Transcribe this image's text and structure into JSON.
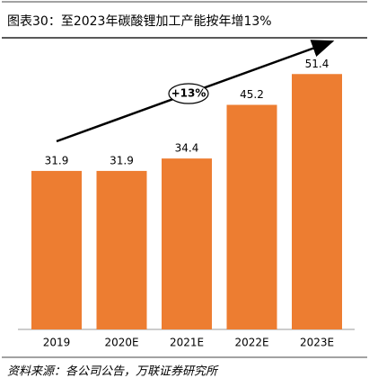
{
  "chart_data": {
    "type": "bar",
    "title": "图表30：至2023年碳酸锂加工产能按年增13%",
    "categories": [
      "2019",
      "2020E",
      "2021E",
      "2022E",
      "2023E"
    ],
    "category_label_colors": [
      "#000000",
      "#c00000",
      "#c00000",
      "#c00000",
      "#c00000"
    ],
    "values": [
      31.9,
      31.9,
      34.4,
      45.2,
      51.4
    ],
    "color": "#ed7d31",
    "annotation": "+13%",
    "source": "资料来源：各公司公告，万联证券研究所"
  }
}
